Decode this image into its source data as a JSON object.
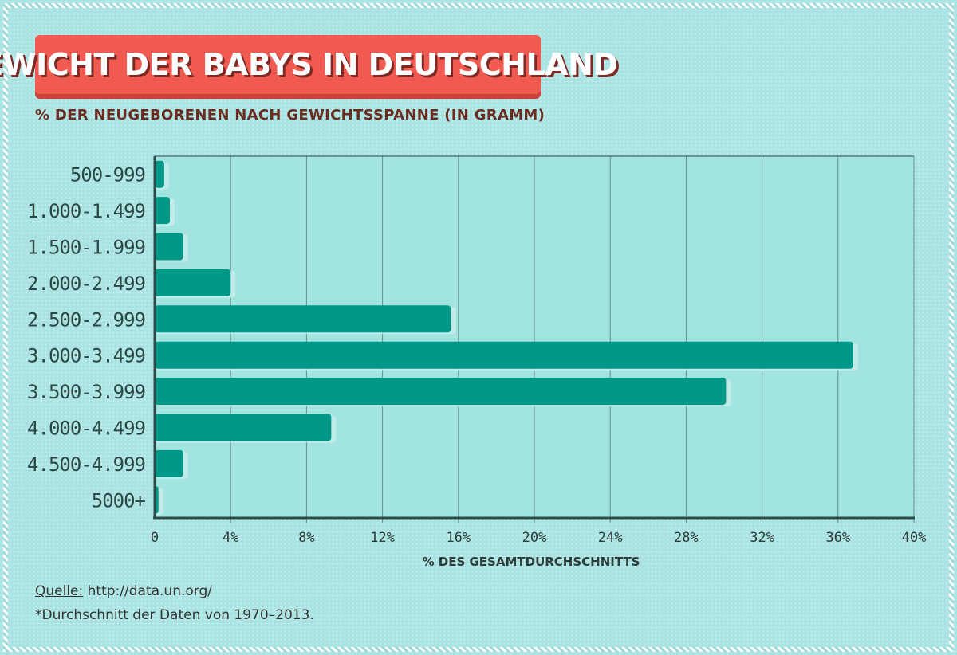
{
  "title": "GEWICHT DER BABYS IN DEUTSCHLAND",
  "subtitle": "% DER NEUGEBORENEN NACH GEWICHTSSPANNE (IN GRAMM)",
  "source_label": "Quelle:",
  "source_url": "http://data.un.org/",
  "footnote": "*Durchschnitt der Daten von 1970–2013.",
  "colors": {
    "bar": "#009888",
    "plot_bg": "#a2e5e0",
    "title_bg": "#f05a50",
    "axis": "#2e4a4a"
  },
  "chart_data": {
    "type": "bar",
    "orientation": "horizontal",
    "title": "GEWICHT DER BABYS IN DEUTSCHLAND",
    "subtitle": "% DER NEUGEBORENEN NACH GEWICHTSSPANNE (IN GRAMM)",
    "xlabel": "% DES GESAMTDURCHSCHNITTS",
    "ylabel": "",
    "xlim": [
      0,
      40
    ],
    "grid": true,
    "categories": [
      "500-999",
      "1.000-1.499",
      "1.500-1.999",
      "2.000-2.499",
      "2.500-2.999",
      "3.000-3.499",
      "3.500-3.999",
      "4.000-4.499",
      "4.500-4.999",
      "5000+"
    ],
    "values": [
      0.5,
      0.8,
      1.5,
      4.0,
      15.6,
      36.8,
      30.1,
      9.3,
      1.5,
      0.2
    ],
    "ticks": [
      0,
      4,
      8,
      12,
      16,
      20,
      24,
      28,
      32,
      36,
      40
    ],
    "tick_labels": [
      "0",
      "4%",
      "8%",
      "12%",
      "16%",
      "20%",
      "24%",
      "28%",
      "32%",
      "36%",
      "40%"
    ]
  }
}
